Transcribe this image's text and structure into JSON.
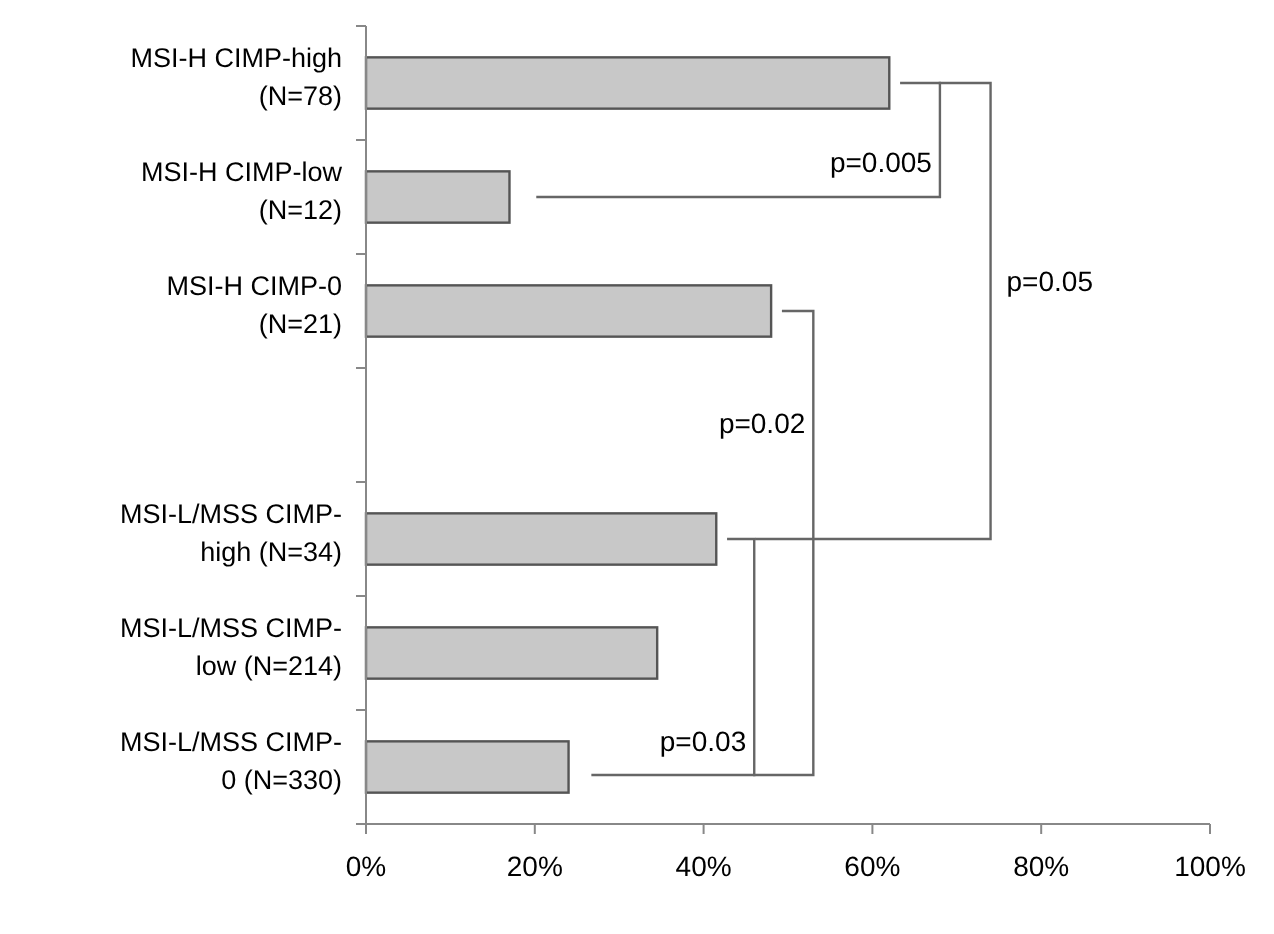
{
  "chart_data": {
    "type": "bar",
    "orientation": "horizontal",
    "categories": [
      "MSI-H CIMP-high\n(N=78)",
      "MSI-H CIMP-low\n(N=12)",
      "MSI-H CIMP-0\n(N=21)",
      null,
      "MSI-L/MSS CIMP-\nhigh (N=34)",
      "MSI-L/MSS CIMP-\nlow (N=214)",
      "MSI-L/MSS CIMP-\n0 (N=330)"
    ],
    "values": [
      62,
      17,
      48,
      null,
      41.5,
      34.5,
      24
    ],
    "color": "#c8c8c8",
    "xlim": [
      0,
      100
    ],
    "xticks": [
      {
        "value": 0,
        "label": "0%"
      },
      {
        "value": 20,
        "label": "20%"
      },
      {
        "value": 40,
        "label": "40%"
      },
      {
        "value": 60,
        "label": "60%"
      },
      {
        "value": 80,
        "label": "80%"
      },
      {
        "value": 100,
        "label": "100%"
      }
    ],
    "grid": false,
    "annotations": [
      "p=0.005",
      "p=0.05",
      "p=0.02",
      "p=0.03"
    ]
  }
}
